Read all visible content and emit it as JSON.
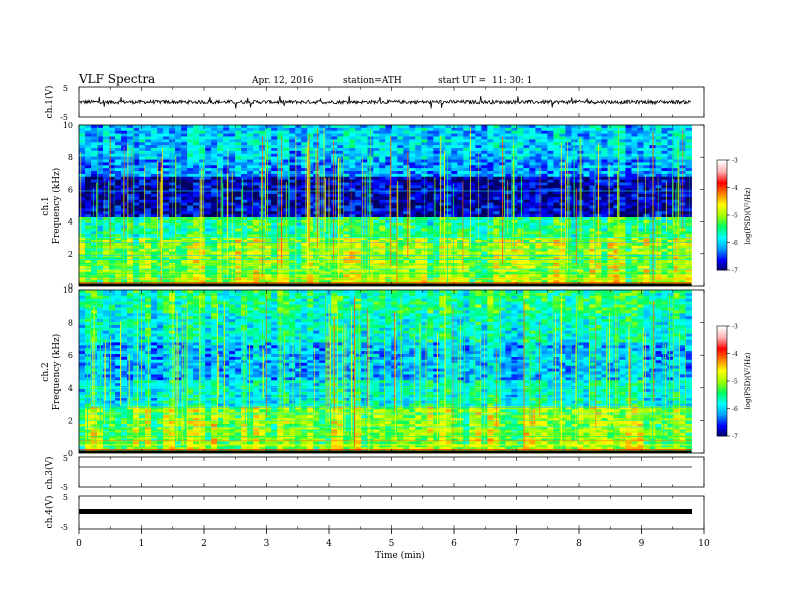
{
  "header": {
    "title": "VLF Spectra",
    "date": "Apr. 12, 2016",
    "station": "station=ATH",
    "start_label": "start",
    "ut_label": "UT =",
    "start_time": "11: 30: 1"
  },
  "chart_data": [
    {
      "type": "line",
      "panel": "ch1",
      "ylabel": "ch.1(V)",
      "ylim": [
        -5,
        5
      ],
      "y_ticks": [
        "5",
        "-5"
      ],
      "baseline": 0,
      "noise_amplitude": 0.6,
      "spike_amplitude": 1.8
    },
    {
      "type": "heatmap",
      "panel": "spec1",
      "ylabel_channel": "ch.1",
      "ylabel": "Frequency (kHz)",
      "ylim": [
        0,
        10
      ],
      "y_ticks": [
        "0",
        "2",
        "4",
        "6",
        "8",
        "10"
      ],
      "colorbar": {
        "label": "log(PSD)(V²/Hz)",
        "range": [
          -7,
          -3
        ],
        "ticks": [
          "-3",
          "-4",
          "-5",
          "-6",
          "-7"
        ],
        "colors": [
          "#000060",
          "#0000ff",
          "#00a0ff",
          "#00ffff",
          "#00ff60",
          "#a0ff00",
          "#ffff00",
          "#ff8000",
          "#ff0000",
          "#ffb0b0",
          "#ffffff"
        ]
      }
    },
    {
      "type": "heatmap",
      "panel": "spec2",
      "ylabel_channel": "ch.2",
      "ylabel": "Frequency (kHz)",
      "ylim": [
        0,
        10
      ],
      "y_ticks": [
        "0",
        "2",
        "4",
        "6",
        "8",
        "10"
      ],
      "colorbar": {
        "label": "log(PSD)(V²/Hz)",
        "range": [
          -7,
          -3
        ],
        "ticks": [
          "-3",
          "-4",
          "-5",
          "-6",
          "-7"
        ],
        "colors": [
          "#000060",
          "#0000ff",
          "#00a0ff",
          "#00ffff",
          "#00ff60",
          "#a0ff00",
          "#ffff00",
          "#ff8000",
          "#ff0000",
          "#ffb0b0",
          "#ffffff"
        ]
      }
    },
    {
      "type": "line",
      "panel": "ch3",
      "ylabel": "ch.3(V)",
      "ylim": [
        -5,
        5
      ],
      "y_ticks": [
        "5",
        "-5"
      ],
      "baseline": 0
    },
    {
      "type": "line",
      "panel": "ch4",
      "ylabel": "ch.4(V)",
      "ylim": [
        -5,
        5
      ],
      "y_ticks": [
        "5",
        "-5"
      ],
      "baseline": 0
    }
  ],
  "x_axis": {
    "label": "Time (min)",
    "range": [
      0,
      10
    ],
    "data_end": 9.8,
    "ticks": [
      "0",
      "1",
      "2",
      "3",
      "4",
      "5",
      "6",
      "7",
      "8",
      "9",
      "10"
    ]
  }
}
